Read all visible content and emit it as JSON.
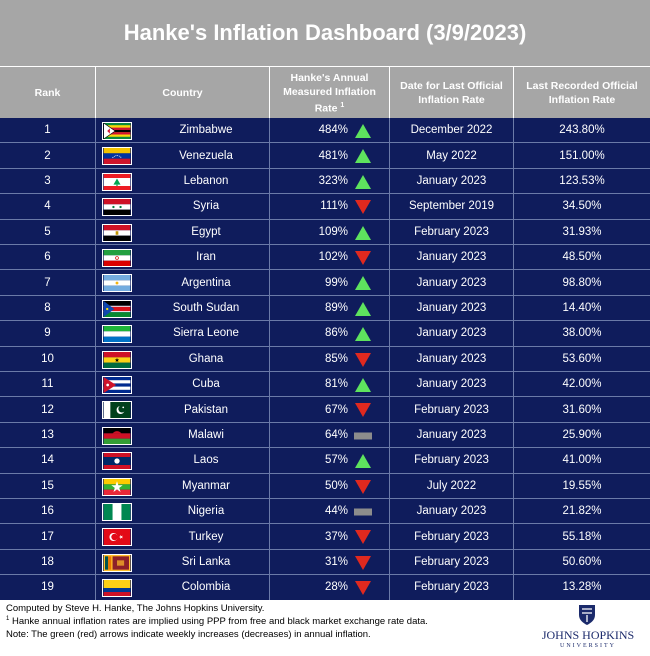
{
  "title": "Hanke's Inflation Dashboard (3/9/2023)",
  "headers": {
    "rank": "Rank",
    "country": "Country",
    "rate_line1": "Hanke's Annual",
    "rate_line2": "Measured Inflation",
    "rate_line3": "Rate",
    "rate_sup": "1",
    "date_line1": "Date for Last Official",
    "date_line2": "Inflation Rate",
    "official_line1": "Last Recorded Official",
    "official_line2": "Inflation Rate"
  },
  "colors": {
    "title_bg": "#a6a6a6",
    "table_bg": "#0f1c5c",
    "up": "#5ee35e",
    "down": "#e0291f",
    "flat": "#8c8c8c"
  },
  "rows": [
    {
      "rank": "1",
      "country": "Zimbabwe",
      "flag": "flag-zimbabwe",
      "rate": "484%",
      "trend": "up",
      "date": "December 2022",
      "official": "243.80%"
    },
    {
      "rank": "2",
      "country": "Venezuela",
      "flag": "flag-venezuela",
      "rate": "481%",
      "trend": "up",
      "date": "May 2022",
      "official": "151.00%"
    },
    {
      "rank": "3",
      "country": "Lebanon",
      "flag": "flag-lebanon",
      "rate": "323%",
      "trend": "up",
      "date": "January 2023",
      "official": "123.53%"
    },
    {
      "rank": "4",
      "country": "Syria",
      "flag": "flag-syria",
      "rate": "111%",
      "trend": "down",
      "date": "September 2019",
      "official": "34.50%"
    },
    {
      "rank": "5",
      "country": "Egypt",
      "flag": "flag-egypt",
      "rate": "109%",
      "trend": "up",
      "date": "February 2023",
      "official": "31.93%"
    },
    {
      "rank": "6",
      "country": "Iran",
      "flag": "flag-iran",
      "rate": "102%",
      "trend": "down",
      "date": "January 2023",
      "official": "48.50%"
    },
    {
      "rank": "7",
      "country": "Argentina",
      "flag": "flag-argentina",
      "rate": "99%",
      "trend": "up",
      "date": "January 2023",
      "official": "98.80%"
    },
    {
      "rank": "8",
      "country": "South Sudan",
      "flag": "flag-south-sudan",
      "rate": "89%",
      "trend": "up",
      "date": "January 2023",
      "official": "14.40%"
    },
    {
      "rank": "9",
      "country": "Sierra Leone",
      "flag": "flag-sierra-leone",
      "rate": "86%",
      "trend": "up",
      "date": "January 2023",
      "official": "38.00%"
    },
    {
      "rank": "10",
      "country": "Ghana",
      "flag": "flag-ghana",
      "rate": "85%",
      "trend": "down",
      "date": "January 2023",
      "official": "53.60%"
    },
    {
      "rank": "11",
      "country": "Cuba",
      "flag": "flag-cuba",
      "rate": "81%",
      "trend": "up",
      "date": "January 2023",
      "official": "42.00%"
    },
    {
      "rank": "12",
      "country": "Pakistan",
      "flag": "flag-pakistan",
      "rate": "67%",
      "trend": "down",
      "date": "February 2023",
      "official": "31.60%"
    },
    {
      "rank": "13",
      "country": "Malawi",
      "flag": "flag-malawi",
      "rate": "64%",
      "trend": "flat",
      "date": "January 2023",
      "official": "25.90%"
    },
    {
      "rank": "14",
      "country": "Laos",
      "flag": "flag-laos",
      "rate": "57%",
      "trend": "up",
      "date": "February 2023",
      "official": "41.00%"
    },
    {
      "rank": "15",
      "country": "Myanmar",
      "flag": "flag-myanmar",
      "rate": "50%",
      "trend": "down",
      "date": "July 2022",
      "official": "19.55%"
    },
    {
      "rank": "16",
      "country": "Nigeria",
      "flag": "flag-nigeria",
      "rate": "44%",
      "trend": "flat",
      "date": "January 2023",
      "official": "21.82%"
    },
    {
      "rank": "17",
      "country": "Turkey",
      "flag": "flag-turkey",
      "rate": "37%",
      "trend": "down",
      "date": "February 2023",
      "official": "55.18%"
    },
    {
      "rank": "18",
      "country": "Sri Lanka",
      "flag": "flag-sri-lanka",
      "rate": "31%",
      "trend": "down",
      "date": "February 2023",
      "official": "50.60%"
    },
    {
      "rank": "19",
      "country": "Colombia",
      "flag": "flag-colombia",
      "rate": "28%",
      "trend": "down",
      "date": "February 2023",
      "official": "13.28%"
    }
  ],
  "footer": {
    "line1": "Computed by Steve H. Hanke, The Johns Hopkins University.",
    "line2_sup": "1",
    "line2": " Hanke annual inflation rates are implied using PPP from free and black market exchange rate data.",
    "line3": "Note: The green (red) arrows indicate weekly increases (decreases) in annual inflation."
  },
  "logo": {
    "name": "JOHNS HOPKINS",
    "sub": "UNIVERSITY",
    "icon": "shield-icon"
  }
}
